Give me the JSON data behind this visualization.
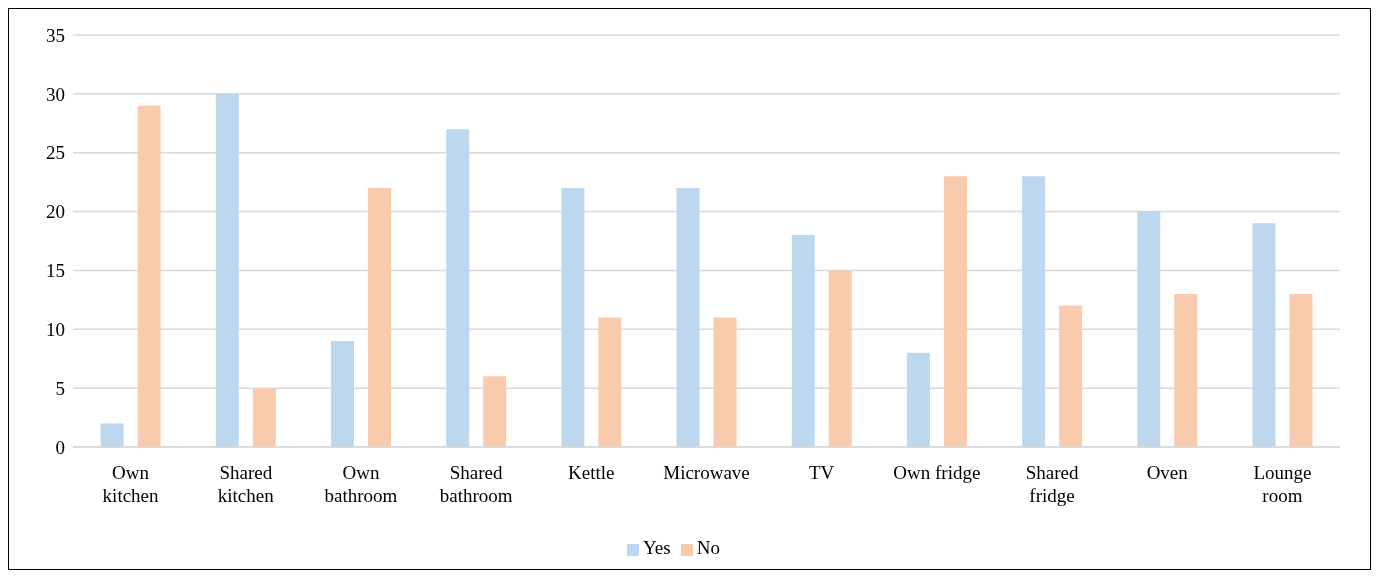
{
  "chart_data": {
    "type": "bar",
    "categories": [
      "Own kitchen",
      "Shared kitchen",
      "Own bathroom",
      "Shared bathroom",
      "Kettle",
      "Microwave",
      "TV",
      "Own fridge",
      "Shared fridge",
      "Oven",
      "Lounge room"
    ],
    "series": [
      {
        "name": "Yes",
        "color": "#bdd7ee",
        "values": [
          2,
          30,
          9,
          27,
          22,
          22,
          18,
          8,
          23,
          20,
          19
        ]
      },
      {
        "name": "No",
        "color": "#f8cbad",
        "values": [
          29,
          5,
          22,
          6,
          11,
          11,
          15,
          23,
          12,
          13,
          13
        ]
      }
    ],
    "ylim": [
      0,
      35
    ],
    "yticks": [
      0,
      5,
      10,
      15,
      20,
      25,
      30,
      35
    ],
    "grid": "y",
    "legend": "bottom"
  }
}
